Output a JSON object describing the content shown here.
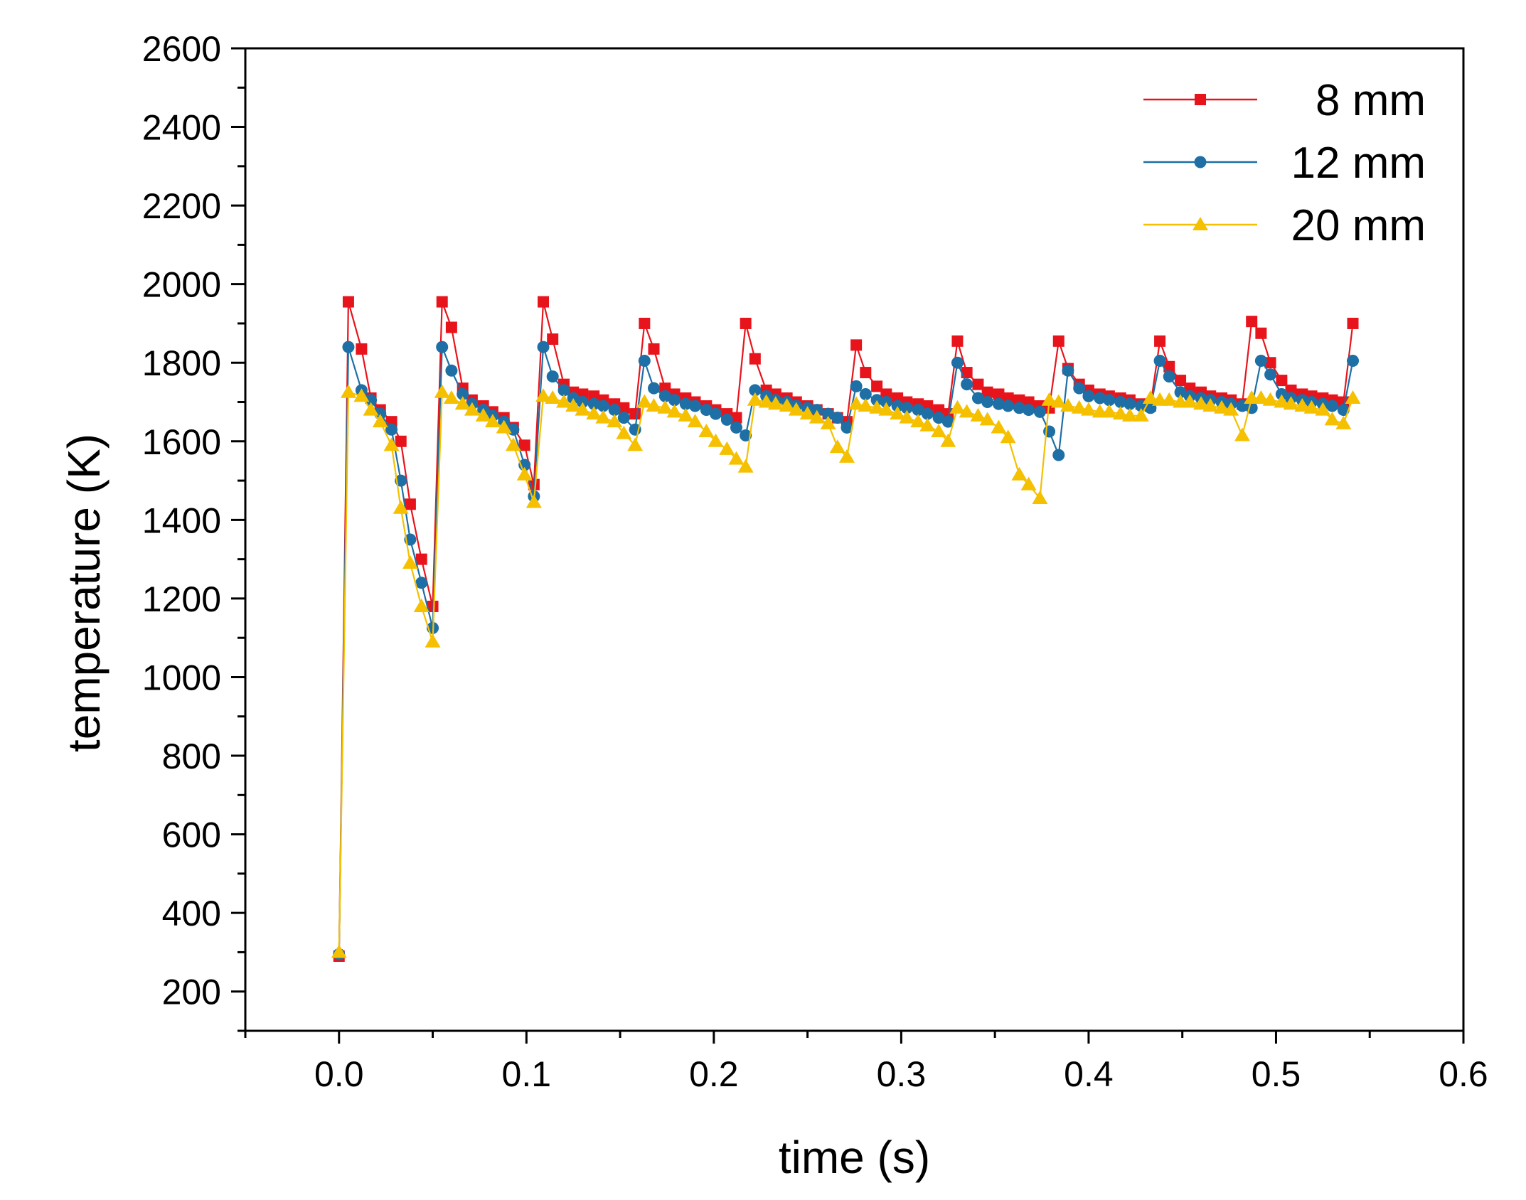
{
  "chart_data": {
    "type": "line",
    "title": "",
    "xlabel": "time (s)",
    "ylabel": "temperature (K)",
    "xlim": [
      -0.05,
      0.6
    ],
    "ylim": [
      100,
      2600
    ],
    "xticks": [
      "0.0",
      "0.1",
      "0.2",
      "0.3",
      "0.4",
      "0.5",
      "0.6"
    ],
    "xtick_values": [
      0.0,
      0.1,
      0.2,
      0.3,
      0.4,
      0.5,
      0.6
    ],
    "yticks": [
      "200",
      "400",
      "600",
      "800",
      "1000",
      "1200",
      "1400",
      "1600",
      "1800",
      "2000",
      "2200",
      "2400",
      "2600"
    ],
    "ytick_values": [
      200,
      400,
      600,
      800,
      1000,
      1200,
      1400,
      1600,
      1800,
      2000,
      2200,
      2400,
      2600
    ],
    "legend_position": "top-right",
    "series": [
      {
        "name": "8 mm",
        "color": "#e8141c",
        "marker": "square",
        "points": [
          [
            0.0,
            290
          ],
          [
            0.005,
            1955
          ],
          [
            0.012,
            1835
          ],
          [
            0.017,
            1710
          ],
          [
            0.022,
            1680
          ],
          [
            0.028,
            1650
          ],
          [
            0.033,
            1600
          ],
          [
            0.038,
            1440
          ],
          [
            0.044,
            1300
          ],
          [
            0.05,
            1180
          ],
          [
            0.055,
            1955
          ],
          [
            0.06,
            1890
          ],
          [
            0.066,
            1735
          ],
          [
            0.071,
            1705
          ],
          [
            0.077,
            1690
          ],
          [
            0.082,
            1675
          ],
          [
            0.088,
            1660
          ],
          [
            0.093,
            1635
          ],
          [
            0.099,
            1590
          ],
          [
            0.104,
            1490
          ],
          [
            0.109,
            1955
          ],
          [
            0.114,
            1860
          ],
          [
            0.12,
            1745
          ],
          [
            0.125,
            1725
          ],
          [
            0.13,
            1720
          ],
          [
            0.136,
            1715
          ],
          [
            0.141,
            1705
          ],
          [
            0.147,
            1695
          ],
          [
            0.152,
            1685
          ],
          [
            0.158,
            1670
          ],
          [
            0.163,
            1900
          ],
          [
            0.168,
            1835
          ],
          [
            0.174,
            1735
          ],
          [
            0.179,
            1720
          ],
          [
            0.185,
            1710
          ],
          [
            0.19,
            1700
          ],
          [
            0.196,
            1690
          ],
          [
            0.201,
            1680
          ],
          [
            0.207,
            1670
          ],
          [
            0.212,
            1660
          ],
          [
            0.217,
            1900
          ],
          [
            0.222,
            1810
          ],
          [
            0.228,
            1730
          ],
          [
            0.233,
            1720
          ],
          [
            0.239,
            1710
          ],
          [
            0.244,
            1700
          ],
          [
            0.25,
            1690
          ],
          [
            0.255,
            1680
          ],
          [
            0.261,
            1670
          ],
          [
            0.266,
            1660
          ],
          [
            0.271,
            1650
          ],
          [
            0.276,
            1845
          ],
          [
            0.281,
            1775
          ],
          [
            0.287,
            1740
          ],
          [
            0.292,
            1720
          ],
          [
            0.298,
            1710
          ],
          [
            0.303,
            1700
          ],
          [
            0.309,
            1695
          ],
          [
            0.314,
            1690
          ],
          [
            0.32,
            1680
          ],
          [
            0.325,
            1670
          ],
          [
            0.33,
            1855
          ],
          [
            0.335,
            1775
          ],
          [
            0.341,
            1745
          ],
          [
            0.346,
            1725
          ],
          [
            0.352,
            1720
          ],
          [
            0.357,
            1710
          ],
          [
            0.363,
            1705
          ],
          [
            0.368,
            1700
          ],
          [
            0.374,
            1690
          ],
          [
            0.379,
            1685
          ],
          [
            0.384,
            1855
          ],
          [
            0.389,
            1785
          ],
          [
            0.395,
            1745
          ],
          [
            0.4,
            1730
          ],
          [
            0.406,
            1720
          ],
          [
            0.411,
            1715
          ],
          [
            0.417,
            1710
          ],
          [
            0.422,
            1705
          ],
          [
            0.428,
            1695
          ],
          [
            0.433,
            1690
          ],
          [
            0.438,
            1855
          ],
          [
            0.443,
            1790
          ],
          [
            0.449,
            1755
          ],
          [
            0.454,
            1735
          ],
          [
            0.46,
            1725
          ],
          [
            0.465,
            1715
          ],
          [
            0.471,
            1710
          ],
          [
            0.476,
            1705
          ],
          [
            0.482,
            1695
          ],
          [
            0.487,
            1905
          ],
          [
            0.492,
            1875
          ],
          [
            0.497,
            1800
          ],
          [
            0.503,
            1755
          ],
          [
            0.508,
            1730
          ],
          [
            0.514,
            1720
          ],
          [
            0.519,
            1715
          ],
          [
            0.525,
            1710
          ],
          [
            0.53,
            1705
          ],
          [
            0.536,
            1700
          ],
          [
            0.541,
            1900
          ]
        ]
      },
      {
        "name": "12 mm",
        "color": "#1d6fa5",
        "marker": "circle",
        "points": [
          [
            0.0,
            295
          ],
          [
            0.005,
            1840
          ],
          [
            0.012,
            1730
          ],
          [
            0.017,
            1705
          ],
          [
            0.022,
            1670
          ],
          [
            0.028,
            1630
          ],
          [
            0.033,
            1500
          ],
          [
            0.038,
            1350
          ],
          [
            0.044,
            1240
          ],
          [
            0.05,
            1125
          ],
          [
            0.055,
            1840
          ],
          [
            0.06,
            1780
          ],
          [
            0.066,
            1720
          ],
          [
            0.071,
            1695
          ],
          [
            0.077,
            1680
          ],
          [
            0.082,
            1665
          ],
          [
            0.088,
            1650
          ],
          [
            0.093,
            1630
          ],
          [
            0.099,
            1540
          ],
          [
            0.104,
            1460
          ],
          [
            0.109,
            1840
          ],
          [
            0.114,
            1765
          ],
          [
            0.12,
            1730
          ],
          [
            0.125,
            1710
          ],
          [
            0.13,
            1700
          ],
          [
            0.136,
            1695
          ],
          [
            0.141,
            1690
          ],
          [
            0.147,
            1680
          ],
          [
            0.152,
            1660
          ],
          [
            0.158,
            1630
          ],
          [
            0.163,
            1805
          ],
          [
            0.168,
            1735
          ],
          [
            0.174,
            1715
          ],
          [
            0.179,
            1705
          ],
          [
            0.185,
            1695
          ],
          [
            0.19,
            1690
          ],
          [
            0.196,
            1680
          ],
          [
            0.201,
            1670
          ],
          [
            0.207,
            1655
          ],
          [
            0.212,
            1635
          ],
          [
            0.217,
            1615
          ],
          [
            0.222,
            1730
          ],
          [
            0.228,
            1715
          ],
          [
            0.233,
            1705
          ],
          [
            0.239,
            1700
          ],
          [
            0.244,
            1690
          ],
          [
            0.25,
            1685
          ],
          [
            0.255,
            1680
          ],
          [
            0.261,
            1670
          ],
          [
            0.266,
            1660
          ],
          [
            0.271,
            1635
          ],
          [
            0.276,
            1740
          ],
          [
            0.281,
            1720
          ],
          [
            0.287,
            1705
          ],
          [
            0.292,
            1700
          ],
          [
            0.298,
            1690
          ],
          [
            0.303,
            1685
          ],
          [
            0.309,
            1680
          ],
          [
            0.314,
            1670
          ],
          [
            0.32,
            1660
          ],
          [
            0.325,
            1650
          ],
          [
            0.33,
            1800
          ],
          [
            0.335,
            1745
          ],
          [
            0.341,
            1710
          ],
          [
            0.346,
            1700
          ],
          [
            0.352,
            1695
          ],
          [
            0.357,
            1690
          ],
          [
            0.363,
            1685
          ],
          [
            0.368,
            1680
          ],
          [
            0.374,
            1675
          ],
          [
            0.379,
            1625
          ],
          [
            0.384,
            1565
          ],
          [
            0.389,
            1780
          ],
          [
            0.395,
            1735
          ],
          [
            0.4,
            1715
          ],
          [
            0.406,
            1710
          ],
          [
            0.411,
            1705
          ],
          [
            0.417,
            1700
          ],
          [
            0.422,
            1695
          ],
          [
            0.428,
            1690
          ],
          [
            0.433,
            1685
          ],
          [
            0.438,
            1805
          ],
          [
            0.443,
            1765
          ],
          [
            0.449,
            1725
          ],
          [
            0.454,
            1715
          ],
          [
            0.46,
            1710
          ],
          [
            0.465,
            1705
          ],
          [
            0.471,
            1700
          ],
          [
            0.476,
            1695
          ],
          [
            0.482,
            1690
          ],
          [
            0.487,
            1685
          ],
          [
            0.492,
            1805
          ],
          [
            0.497,
            1770
          ],
          [
            0.503,
            1720
          ],
          [
            0.508,
            1710
          ],
          [
            0.514,
            1705
          ],
          [
            0.519,
            1700
          ],
          [
            0.525,
            1695
          ],
          [
            0.53,
            1690
          ],
          [
            0.536,
            1680
          ],
          [
            0.541,
            1805
          ]
        ]
      },
      {
        "name": "20 mm",
        "color": "#f5c000",
        "marker": "triangle",
        "points": [
          [
            0.0,
            300
          ],
          [
            0.005,
            1725
          ],
          [
            0.012,
            1715
          ],
          [
            0.017,
            1680
          ],
          [
            0.022,
            1650
          ],
          [
            0.028,
            1590
          ],
          [
            0.033,
            1430
          ],
          [
            0.038,
            1290
          ],
          [
            0.044,
            1180
          ],
          [
            0.05,
            1090
          ],
          [
            0.055,
            1725
          ],
          [
            0.06,
            1710
          ],
          [
            0.066,
            1695
          ],
          [
            0.071,
            1680
          ],
          [
            0.077,
            1665
          ],
          [
            0.082,
            1650
          ],
          [
            0.088,
            1635
          ],
          [
            0.093,
            1590
          ],
          [
            0.099,
            1515
          ],
          [
            0.104,
            1445
          ],
          [
            0.109,
            1715
          ],
          [
            0.114,
            1710
          ],
          [
            0.12,
            1700
          ],
          [
            0.125,
            1690
          ],
          [
            0.13,
            1680
          ],
          [
            0.136,
            1670
          ],
          [
            0.141,
            1660
          ],
          [
            0.147,
            1650
          ],
          [
            0.152,
            1620
          ],
          [
            0.158,
            1590
          ],
          [
            0.163,
            1700
          ],
          [
            0.168,
            1690
          ],
          [
            0.174,
            1685
          ],
          [
            0.179,
            1675
          ],
          [
            0.185,
            1665
          ],
          [
            0.19,
            1650
          ],
          [
            0.196,
            1625
          ],
          [
            0.201,
            1600
          ],
          [
            0.207,
            1580
          ],
          [
            0.212,
            1555
          ],
          [
            0.217,
            1535
          ],
          [
            0.222,
            1705
          ],
          [
            0.228,
            1700
          ],
          [
            0.233,
            1695
          ],
          [
            0.239,
            1690
          ],
          [
            0.244,
            1680
          ],
          [
            0.25,
            1670
          ],
          [
            0.255,
            1660
          ],
          [
            0.261,
            1645
          ],
          [
            0.266,
            1585
          ],
          [
            0.271,
            1560
          ],
          [
            0.276,
            1695
          ],
          [
            0.281,
            1690
          ],
          [
            0.287,
            1685
          ],
          [
            0.292,
            1680
          ],
          [
            0.298,
            1670
          ],
          [
            0.303,
            1660
          ],
          [
            0.309,
            1650
          ],
          [
            0.314,
            1640
          ],
          [
            0.32,
            1625
          ],
          [
            0.325,
            1600
          ],
          [
            0.33,
            1685
          ],
          [
            0.335,
            1675
          ],
          [
            0.341,
            1665
          ],
          [
            0.346,
            1655
          ],
          [
            0.352,
            1635
          ],
          [
            0.357,
            1610
          ],
          [
            0.363,
            1515
          ],
          [
            0.368,
            1490
          ],
          [
            0.374,
            1455
          ],
          [
            0.379,
            1705
          ],
          [
            0.384,
            1700
          ],
          [
            0.389,
            1690
          ],
          [
            0.395,
            1685
          ],
          [
            0.4,
            1680
          ],
          [
            0.406,
            1675
          ],
          [
            0.411,
            1675
          ],
          [
            0.417,
            1670
          ],
          [
            0.422,
            1665
          ],
          [
            0.428,
            1665
          ],
          [
            0.433,
            1710
          ],
          [
            0.438,
            1705
          ],
          [
            0.443,
            1705
          ],
          [
            0.449,
            1700
          ],
          [
            0.454,
            1700
          ],
          [
            0.46,
            1695
          ],
          [
            0.465,
            1690
          ],
          [
            0.471,
            1685
          ],
          [
            0.476,
            1680
          ],
          [
            0.482,
            1615
          ],
          [
            0.487,
            1710
          ],
          [
            0.492,
            1710
          ],
          [
            0.497,
            1705
          ],
          [
            0.503,
            1700
          ],
          [
            0.508,
            1695
          ],
          [
            0.514,
            1690
          ],
          [
            0.519,
            1685
          ],
          [
            0.525,
            1680
          ],
          [
            0.53,
            1655
          ],
          [
            0.536,
            1645
          ],
          [
            0.541,
            1710
          ]
        ]
      }
    ]
  }
}
